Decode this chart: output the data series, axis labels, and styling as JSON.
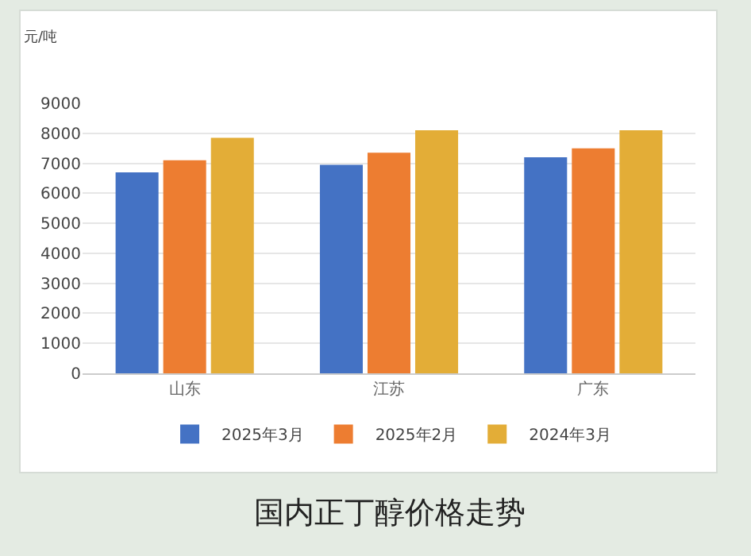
{
  "chart_data": {
    "type": "bar",
    "title": "国内正丁醇价格走势",
    "ylabel": "元/吨",
    "categories": [
      "山东",
      "江苏",
      "广东"
    ],
    "series": [
      {
        "name": "2025年3月",
        "color": "#4472c4",
        "values": [
          6700,
          6950,
          7200
        ]
      },
      {
        "name": "2025年2月",
        "color": "#ed7d31",
        "values": [
          7100,
          7350,
          7500
        ]
      },
      {
        "name": "2024年3月",
        "color": "#e3ad37",
        "values": [
          7850,
          8100,
          8100
        ]
      }
    ],
    "ylim": [
      0,
      9000
    ],
    "yticks": [
      0,
      1000,
      2000,
      3000,
      4000,
      5000,
      6000,
      7000,
      8000,
      9000
    ],
    "grid": "y",
    "legend": "bottom"
  }
}
